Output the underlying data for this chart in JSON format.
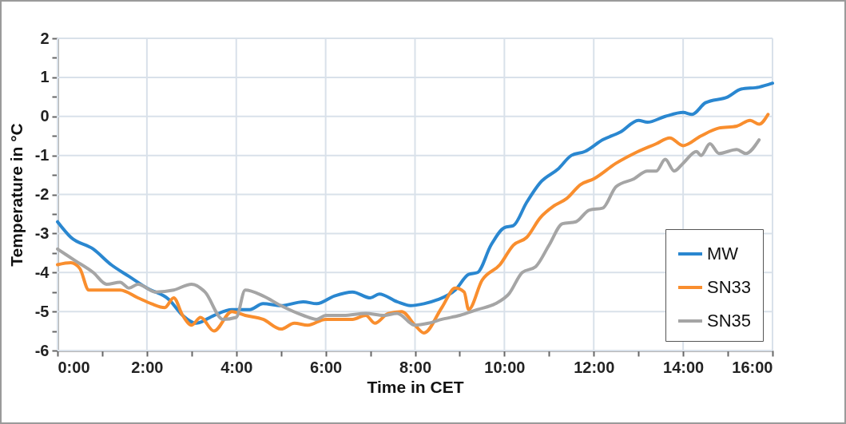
{
  "chart_data": {
    "type": "line",
    "xlabel": "Time in CET",
    "ylabel": "Temperature in °C",
    "xlim": [
      0,
      16
    ],
    "ylim": [
      -6,
      2
    ],
    "xticks": [
      {
        "value": 0,
        "label": "0:00"
      },
      {
        "value": 1,
        "label": null
      },
      {
        "value": 2,
        "label": "2:00"
      },
      {
        "value": 3,
        "label": null
      },
      {
        "value": 4,
        "label": "4:00"
      },
      {
        "value": 5,
        "label": null
      },
      {
        "value": 6,
        "label": "6:00"
      },
      {
        "value": 7,
        "label": null
      },
      {
        "value": 8,
        "label": "8:00"
      },
      {
        "value": 9,
        "label": null
      },
      {
        "value": 10,
        "label": "10:00"
      },
      {
        "value": 11,
        "label": null
      },
      {
        "value": 12,
        "label": "12:00"
      },
      {
        "value": 13,
        "label": null
      },
      {
        "value": 14,
        "label": "14:00"
      },
      {
        "value": 15,
        "label": null
      },
      {
        "value": 16,
        "label": "16:00"
      }
    ],
    "yticks": [
      -6,
      {
        "value": -5.5,
        "label": null
      },
      -5,
      {
        "value": -4.5,
        "label": null
      },
      -4,
      {
        "value": -3.5,
        "label": null
      },
      -3,
      {
        "value": -2.5,
        "label": null
      },
      -2,
      {
        "value": -1.5,
        "label": null
      },
      -1,
      {
        "value": -0.5,
        "label": null
      },
      0,
      {
        "value": 0.5,
        "label": null
      },
      1,
      {
        "value": 1.5,
        "label": null
      },
      2
    ],
    "grid": true,
    "legend": "bottom right",
    "line_style": "solid",
    "marker": "none",
    "series": [
      {
        "name": "MW",
        "color": "#2a87d0",
        "x": [
          0,
          0.3,
          0.8,
          1.2,
          1.6,
          2.0,
          2.5,
          2.8,
          3.1,
          3.5,
          3.9,
          4.3,
          4.6,
          5.0,
          5.5,
          5.8,
          6.2,
          6.6,
          7.0,
          7.2,
          7.6,
          7.9,
          8.2,
          8.5,
          8.9,
          9.2,
          9.4,
          9.7,
          10.0,
          10.2,
          10.5,
          10.8,
          11.2,
          11.5,
          11.8,
          12.2,
          12.6,
          13.0,
          13.2,
          13.6,
          14.0,
          14.2,
          14.5,
          15.0,
          15.3,
          15.7,
          16.0
        ],
        "values": [
          -2.7,
          -3.1,
          -3.4,
          -3.8,
          -4.1,
          -4.4,
          -4.7,
          -5.1,
          -5.3,
          -5.1,
          -4.95,
          -4.95,
          -4.8,
          -4.85,
          -4.75,
          -4.8,
          -4.6,
          -4.5,
          -4.65,
          -4.55,
          -4.75,
          -4.85,
          -4.8,
          -4.7,
          -4.45,
          -4.05,
          -4.0,
          -3.3,
          -2.85,
          -2.8,
          -2.2,
          -1.7,
          -1.35,
          -1.0,
          -0.9,
          -0.6,
          -0.4,
          -0.1,
          -0.15,
          0.0,
          0.1,
          0.05,
          0.35,
          0.5,
          0.7,
          0.75,
          0.85
        ]
      },
      {
        "name": "SN33",
        "color": "#f98e2e",
        "x": [
          0,
          0.3,
          0.5,
          0.7,
          1.0,
          1.4,
          1.8,
          2.1,
          2.4,
          2.6,
          2.8,
          3.0,
          3.2,
          3.5,
          3.9,
          4.2,
          4.6,
          5.0,
          5.3,
          5.6,
          6.0,
          6.3,
          6.6,
          6.9,
          7.1,
          7.4,
          7.7,
          8.0,
          8.2,
          8.6,
          8.9,
          9.1,
          9.2,
          9.5,
          9.9,
          10.2,
          10.5,
          10.8,
          11.1,
          11.4,
          11.7,
          12.0,
          12.5,
          12.9,
          13.4,
          13.7,
          14.0,
          14.4,
          14.8,
          15.2,
          15.5,
          15.7,
          15.9
        ],
        "values": [
          -3.8,
          -3.75,
          -3.9,
          -4.45,
          -4.45,
          -4.45,
          -4.65,
          -4.8,
          -4.9,
          -4.65,
          -5.1,
          -5.35,
          -5.15,
          -5.5,
          -5.0,
          -5.1,
          -5.2,
          -5.45,
          -5.3,
          -5.35,
          -5.2,
          -5.2,
          -5.2,
          -5.1,
          -5.3,
          -5.05,
          -5.0,
          -5.35,
          -5.55,
          -4.9,
          -4.4,
          -4.5,
          -4.95,
          -4.2,
          -3.8,
          -3.3,
          -3.1,
          -2.6,
          -2.3,
          -2.1,
          -1.75,
          -1.6,
          -1.2,
          -0.95,
          -0.7,
          -0.55,
          -0.75,
          -0.5,
          -0.3,
          -0.25,
          -0.1,
          -0.2,
          0.05
        ]
      },
      {
        "name": "SN35",
        "color": "#a5a5a5",
        "x": [
          0,
          0.4,
          0.8,
          1.1,
          1.4,
          1.6,
          1.8,
          2.2,
          2.6,
          3.0,
          3.3,
          3.7,
          4.0,
          4.2,
          4.6,
          5.0,
          5.5,
          5.8,
          6.0,
          6.4,
          6.9,
          7.3,
          7.6,
          8.0,
          8.3,
          8.6,
          9.0,
          9.4,
          9.8,
          10.1,
          10.4,
          10.7,
          11.0,
          11.3,
          11.6,
          11.9,
          12.2,
          12.5,
          12.9,
          13.2,
          13.4,
          13.6,
          13.8,
          14.0,
          14.3,
          14.4,
          14.6,
          14.8,
          15.2,
          15.4,
          15.7
        ],
        "values": [
          -3.4,
          -3.7,
          -4.0,
          -4.3,
          -4.25,
          -4.4,
          -4.3,
          -4.5,
          -4.45,
          -4.3,
          -4.5,
          -5.2,
          -5.15,
          -4.45,
          -4.6,
          -4.85,
          -5.1,
          -5.2,
          -5.1,
          -5.1,
          -5.05,
          -5.1,
          -5.05,
          -5.35,
          -5.3,
          -5.2,
          -5.1,
          -4.95,
          -4.8,
          -4.55,
          -4.0,
          -3.85,
          -3.3,
          -2.75,
          -2.7,
          -2.4,
          -2.35,
          -1.8,
          -1.6,
          -1.4,
          -1.4,
          -1.1,
          -1.4,
          -1.2,
          -0.9,
          -1.0,
          -0.7,
          -0.95,
          -0.85,
          -0.95,
          -0.6
        ]
      }
    ]
  }
}
